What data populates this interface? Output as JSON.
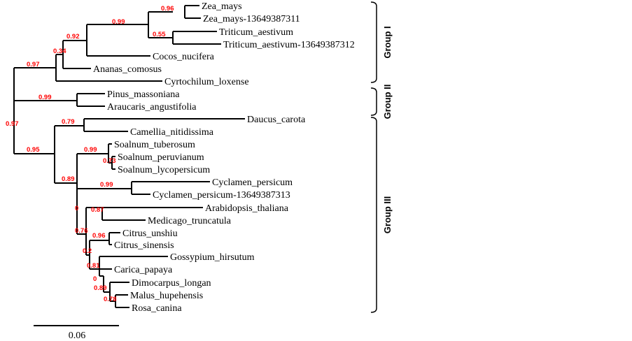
{
  "taxa": [
    "Zea_mays",
    "Zea_mays-13649387311",
    "Triticum_aestivum",
    "Triticum_aestivum-13649387312",
    "Cocos_nucifera",
    "Ananas_comosus",
    "Cyrtochilum_loxense",
    "Pinus_massoniana",
    "Araucaris_angustifolia",
    "Daucus_carota",
    "Camellia_nitidissima",
    "Soalnum_tuberosum",
    "Soalnum_peruvianum",
    "Soalnum_lycopersicum",
    "Cyclamen_persicum",
    "Cyclamen_persicum-13649387313",
    "Arabidopsis_thaliana",
    "Medicago_truncatula",
    "Citrus_unshiu",
    "Citrus_sinensis",
    "Gossypium_hirsutum",
    "Carica_papaya",
    "Dimocarpus_longan",
    "Malus_hupehensis",
    "Rosa_canina"
  ],
  "bootstrap": [
    "0.96",
    "0.55",
    "0.99",
    "0.92",
    "0.34",
    "0.97",
    "0.99",
    "0.97",
    "0.79",
    "0.95",
    "0.99",
    "0.73",
    "0.89",
    "0.99",
    "0",
    "0.87",
    "0.76",
    "0.96",
    "0.2",
    "0.81",
    "0",
    "0.89",
    "0.78"
  ],
  "groups": [
    "Group I",
    "Group II",
    "Group III"
  ],
  "scale_label": "0.06",
  "colors": {
    "branch": "#000000",
    "bootstrap": "#ff0000"
  }
}
